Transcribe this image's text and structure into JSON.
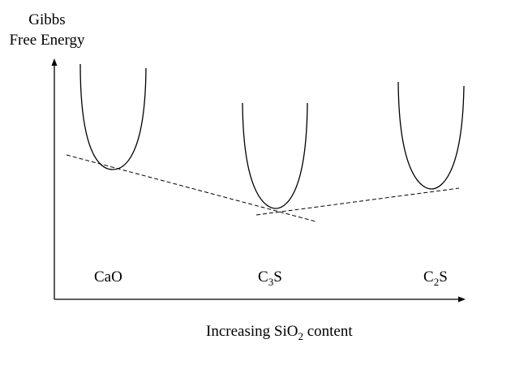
{
  "axes": {
    "y_label_line1": "Gibbs",
    "y_label_line2": "Free Energy",
    "x_label_main": "Increasing SiO",
    "x_label_sub": "2",
    "x_label_end": " content"
  },
  "phases": [
    {
      "id": "cao",
      "main": "CaO",
      "sub": "",
      "end": ""
    },
    {
      "id": "c3s",
      "main": "C",
      "sub": "3",
      "end": "S"
    },
    {
      "id": "c2s",
      "main": "C",
      "sub": "2",
      "end": "S"
    }
  ],
  "colors": {
    "stroke": "#000000",
    "background": "#ffffff"
  }
}
